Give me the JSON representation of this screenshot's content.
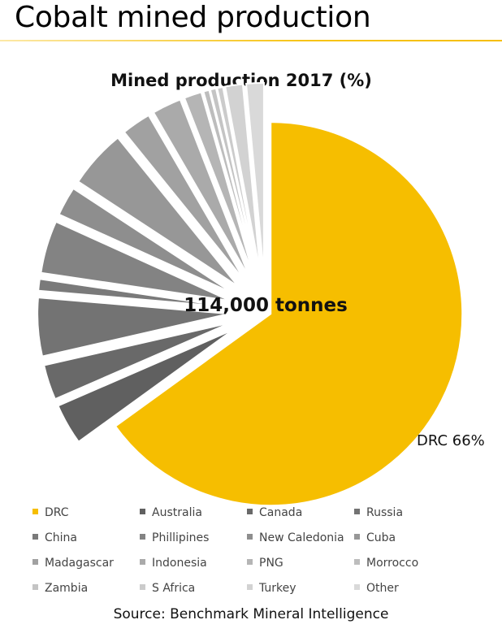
{
  "slide": {
    "title": "Cobalt mined production",
    "source": "Source: Benchmark Mineral Intelligence"
  },
  "colors": {
    "accent": "#F6BE00"
  },
  "chart_data": {
    "type": "pie",
    "title": "Mined production 2017 (%)",
    "center_label": "114,000 tonnes",
    "data_label": "DRC 66%",
    "legend_position": "bottom",
    "categories": [
      "DRC",
      "Australia",
      "Canada",
      "Russia",
      "China",
      "Phillipines",
      "New Caledonia",
      "Cuba",
      "Madagascar",
      "Indonesia",
      "PNG",
      "Morrocco",
      "Zambia",
      "S Africa",
      "Turkey",
      "Other"
    ],
    "values": [
      66,
      3.5,
      3,
      5,
      1,
      4.5,
      2.5,
      5,
      2.5,
      2.5,
      1.5,
      0.5,
      0.5,
      0.5,
      1.5,
      1.5
    ],
    "colors": [
      "#F6BE00",
      "#606060",
      "#696969",
      "#737373",
      "#7a7a7a",
      "#838383",
      "#8e8e8e",
      "#979797",
      "#a1a1a1",
      "#aaaaaa",
      "#b5b5b5",
      "#bdbdbd",
      "#c4c4c4",
      "#cbcbcb",
      "#d2d2d2",
      "#d9d9d9"
    ]
  }
}
